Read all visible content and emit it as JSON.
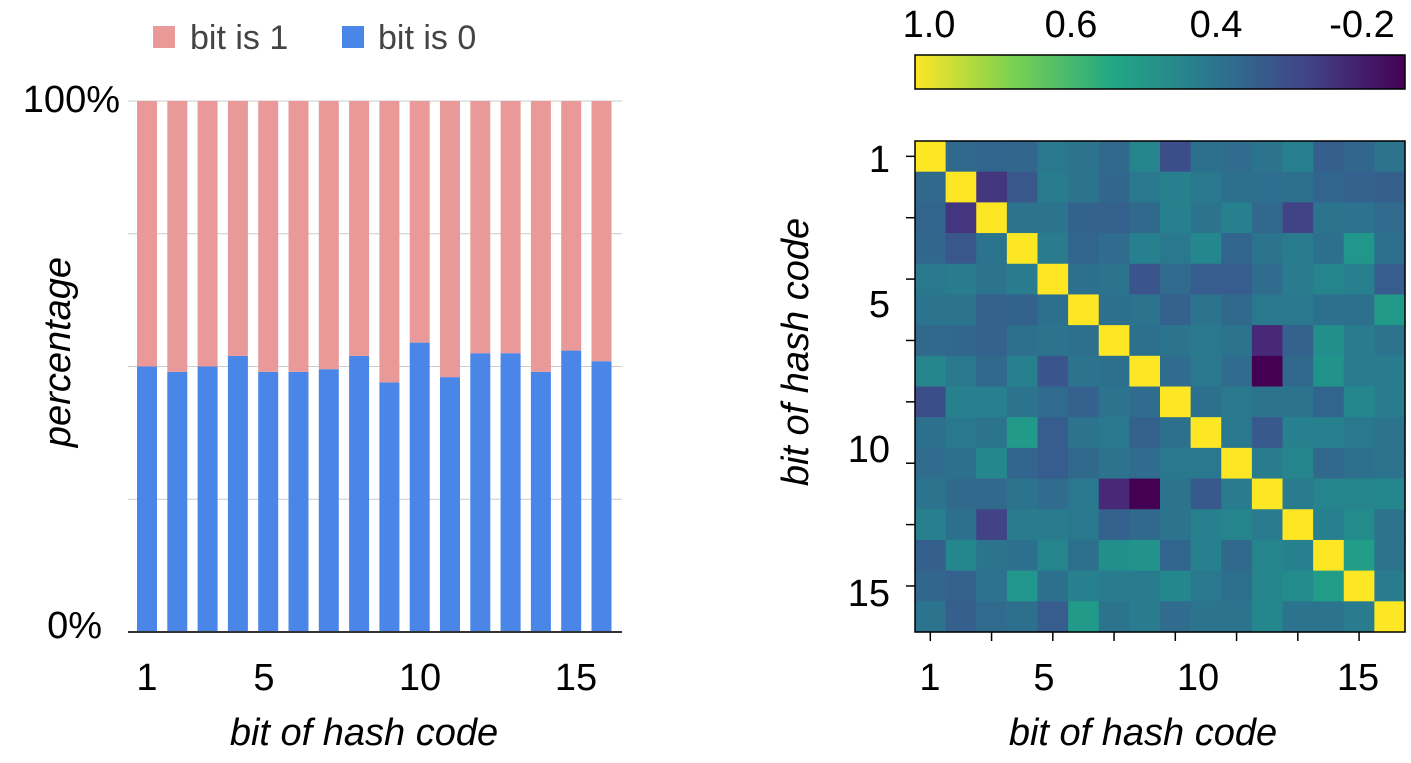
{
  "chart_data": [
    {
      "type": "bar",
      "stacked": true,
      "xlabel": "bit of hash code",
      "ylabel": "percentage",
      "ylim": [
        0,
        100
      ],
      "y_tick_labels": [
        "0%",
        "100%"
      ],
      "x_tick_labels": [
        "1",
        "5",
        "10",
        "15"
      ],
      "categories": [
        "1",
        "2",
        "3",
        "4",
        "5",
        "6",
        "7",
        "8",
        "9",
        "10",
        "11",
        "12",
        "13",
        "14",
        "15",
        "16"
      ],
      "legend_position": "top",
      "series": [
        {
          "name": "bit is 0",
          "color": "#4a86e8",
          "values": [
            50,
            49,
            50,
            52,
            49,
            49,
            49.5,
            52,
            47,
            54.5,
            48,
            52.5,
            52.5,
            49,
            53,
            51
          ]
        },
        {
          "name": "bit is 1",
          "color": "#ea9999",
          "values": [
            50,
            51,
            50,
            48,
            51,
            51,
            50.5,
            48,
            53,
            45.5,
            52,
            47.5,
            47.5,
            51,
            47,
            49
          ]
        }
      ]
    },
    {
      "type": "heatmap",
      "xlabel": "bit of hash code",
      "ylabel": "bit of hash code",
      "x_tick_labels": [
        "1",
        "5",
        "10",
        "15"
      ],
      "y_tick_labels": [
        "1",
        "5",
        "10",
        "15"
      ],
      "colorbar": {
        "tick_labels": [
          "1.0",
          "0.6",
          "0.4",
          "-0.2"
        ],
        "range": [
          -0.3,
          1.0
        ],
        "colormap": "viridis",
        "direction": "reversed"
      },
      "matrix": [
        [
          1.0,
          0.14,
          0.12,
          0.13,
          0.22,
          0.2,
          0.14,
          0.28,
          0.01,
          0.18,
          0.16,
          0.2,
          0.26,
          0.09,
          0.13,
          0.2
        ],
        [
          0.14,
          1.0,
          -0.1,
          0.05,
          0.24,
          0.2,
          0.13,
          0.22,
          0.26,
          0.22,
          0.18,
          0.17,
          0.18,
          0.12,
          0.1,
          0.09
        ],
        [
          0.12,
          -0.1,
          1.0,
          0.2,
          0.2,
          0.11,
          0.1,
          0.14,
          0.26,
          0.2,
          0.26,
          0.14,
          -0.05,
          0.2,
          0.19,
          0.15
        ],
        [
          0.13,
          0.05,
          0.2,
          1.0,
          0.24,
          0.12,
          0.16,
          0.26,
          0.22,
          0.3,
          0.12,
          0.2,
          0.24,
          0.18,
          0.38,
          0.18
        ],
        [
          0.22,
          0.24,
          0.2,
          0.24,
          1.0,
          0.18,
          0.2,
          0.04,
          0.15,
          0.08,
          0.08,
          0.16,
          0.24,
          0.28,
          0.26,
          0.08
        ],
        [
          0.2,
          0.2,
          0.1,
          0.11,
          0.18,
          1.0,
          0.18,
          0.2,
          0.1,
          0.2,
          0.14,
          0.22,
          0.22,
          0.18,
          0.18,
          0.4
        ],
        [
          0.14,
          0.13,
          0.1,
          0.18,
          0.2,
          0.18,
          1.0,
          0.18,
          0.2,
          0.22,
          0.2,
          -0.15,
          0.1,
          0.34,
          0.24,
          0.2
        ],
        [
          0.28,
          0.22,
          0.14,
          0.26,
          0.04,
          0.2,
          0.18,
          1.0,
          0.16,
          0.22,
          0.16,
          -0.3,
          0.14,
          0.36,
          0.24,
          0.24
        ],
        [
          0.01,
          0.26,
          0.26,
          0.2,
          0.15,
          0.1,
          0.2,
          0.16,
          1.0,
          0.18,
          0.22,
          0.2,
          0.2,
          0.12,
          0.3,
          0.24
        ],
        [
          0.18,
          0.22,
          0.2,
          0.4,
          0.08,
          0.2,
          0.22,
          0.1,
          0.18,
          1.0,
          0.22,
          0.06,
          0.26,
          0.26,
          0.22,
          0.2
        ],
        [
          0.16,
          0.18,
          0.3,
          0.12,
          0.08,
          0.14,
          0.2,
          0.16,
          0.22,
          0.22,
          1.0,
          0.24,
          0.28,
          0.14,
          0.18,
          0.2
        ],
        [
          0.2,
          0.14,
          0.14,
          0.2,
          0.16,
          0.22,
          -0.15,
          -0.3,
          0.2,
          0.06,
          0.24,
          1.0,
          0.24,
          0.28,
          0.28,
          0.3
        ],
        [
          0.26,
          0.18,
          -0.05,
          0.24,
          0.24,
          0.22,
          0.1,
          0.14,
          0.2,
          0.26,
          0.28,
          0.24,
          1.0,
          0.26,
          0.32,
          0.2
        ],
        [
          0.09,
          0.3,
          0.2,
          0.18,
          0.28,
          0.18,
          0.34,
          0.36,
          0.12,
          0.26,
          0.14,
          0.28,
          0.26,
          1.0,
          0.42,
          0.2
        ],
        [
          0.13,
          0.1,
          0.19,
          0.38,
          0.18,
          0.26,
          0.24,
          0.24,
          0.3,
          0.22,
          0.18,
          0.28,
          0.32,
          0.42,
          1.0,
          0.24
        ],
        [
          0.2,
          0.09,
          0.15,
          0.18,
          0.08,
          0.4,
          0.2,
          0.24,
          0.16,
          0.2,
          0.2,
          0.3,
          0.2,
          0.2,
          0.24,
          1.0
        ]
      ]
    }
  ]
}
